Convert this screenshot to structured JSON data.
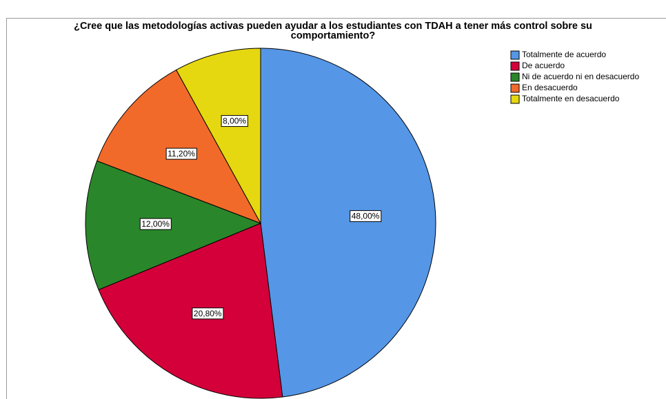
{
  "chart_data": {
    "type": "pie",
    "title": "¿Cree que las metodologías activas pueden ayudar a los estudiantes con TDAH a tener más control sobre su\ncomportamiento?",
    "categories": [
      "Totalmente de acuerdo",
      "De acuerdo",
      "Ni de acuerdo ni en desacuerdo",
      "En desacuerdo",
      "Totalmente en desacuerdo"
    ],
    "values": [
      48,
      20.8,
      12,
      11.2,
      8
    ],
    "value_labels": [
      "48,00%",
      "20,80%",
      "12,00%",
      "11,20%",
      "8,00%"
    ],
    "colors": [
      "#5596e6",
      "#d3003a",
      "#2a862a",
      "#f26a2a",
      "#e5d810"
    ],
    "legend": "right"
  }
}
